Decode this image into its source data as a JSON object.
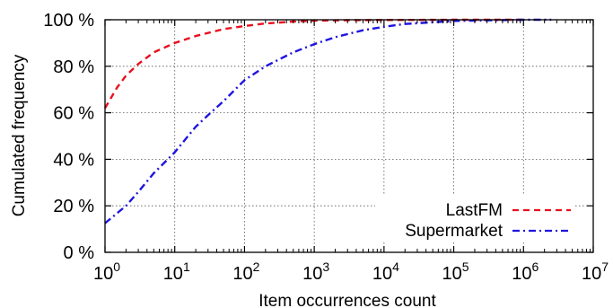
{
  "chart_data": {
    "type": "line",
    "xlabel": "Item occurrences count",
    "ylabel": "Cumulated frequency",
    "x_scale": "log10",
    "xlim": [
      1,
      10000000
    ],
    "ylim": [
      0,
      100
    ],
    "x_ticks": [
      {
        "value": 1,
        "base": "10",
        "exp": "0"
      },
      {
        "value": 10,
        "base": "10",
        "exp": "1"
      },
      {
        "value": 100,
        "base": "10",
        "exp": "2"
      },
      {
        "value": 1000,
        "base": "10",
        "exp": "3"
      },
      {
        "value": 10000,
        "base": "10",
        "exp": "4"
      },
      {
        "value": 100000,
        "base": "10",
        "exp": "5"
      },
      {
        "value": 1000000,
        "base": "10",
        "exp": "6"
      },
      {
        "value": 10000000,
        "base": "10",
        "exp": "7"
      }
    ],
    "y_ticks": [
      {
        "value": 0,
        "label": "0 %"
      },
      {
        "value": 20,
        "label": "20 %"
      },
      {
        "value": 40,
        "label": "40 %"
      },
      {
        "value": 60,
        "label": "60 %"
      },
      {
        "value": 80,
        "label": "80 %"
      },
      {
        "value": 100,
        "label": "100 %"
      }
    ],
    "grid": true,
    "legend_position": "bottom-right",
    "series": [
      {
        "name": "LastFM",
        "color": "#e8101e",
        "dash": "dashed",
        "x": [
          1,
          1.5,
          2,
          3,
          5,
          10,
          20,
          50,
          100,
          200,
          500,
          1000,
          3000,
          10000,
          100000,
          1000000
        ],
        "y": [
          62,
          71,
          76,
          81,
          86,
          90,
          93,
          96,
          97.3,
          98.4,
          99.2,
          99.6,
          99.8,
          99.9,
          100,
          100
        ]
      },
      {
        "name": "Supermarket",
        "color": "#1f14e0",
        "dash": "dash-dot",
        "x": [
          1,
          2,
          3,
          5,
          10,
          20,
          30,
          50,
          100,
          200,
          500,
          1000,
          2000,
          5000,
          10000,
          20000,
          100000,
          1000000,
          2500000
        ],
        "y": [
          12.5,
          20,
          26,
          34,
          43,
          54,
          59,
          65,
          74,
          80,
          86,
          89.5,
          92.5,
          95.5,
          97,
          98.2,
          99.5,
          100,
          100
        ]
      }
    ]
  }
}
